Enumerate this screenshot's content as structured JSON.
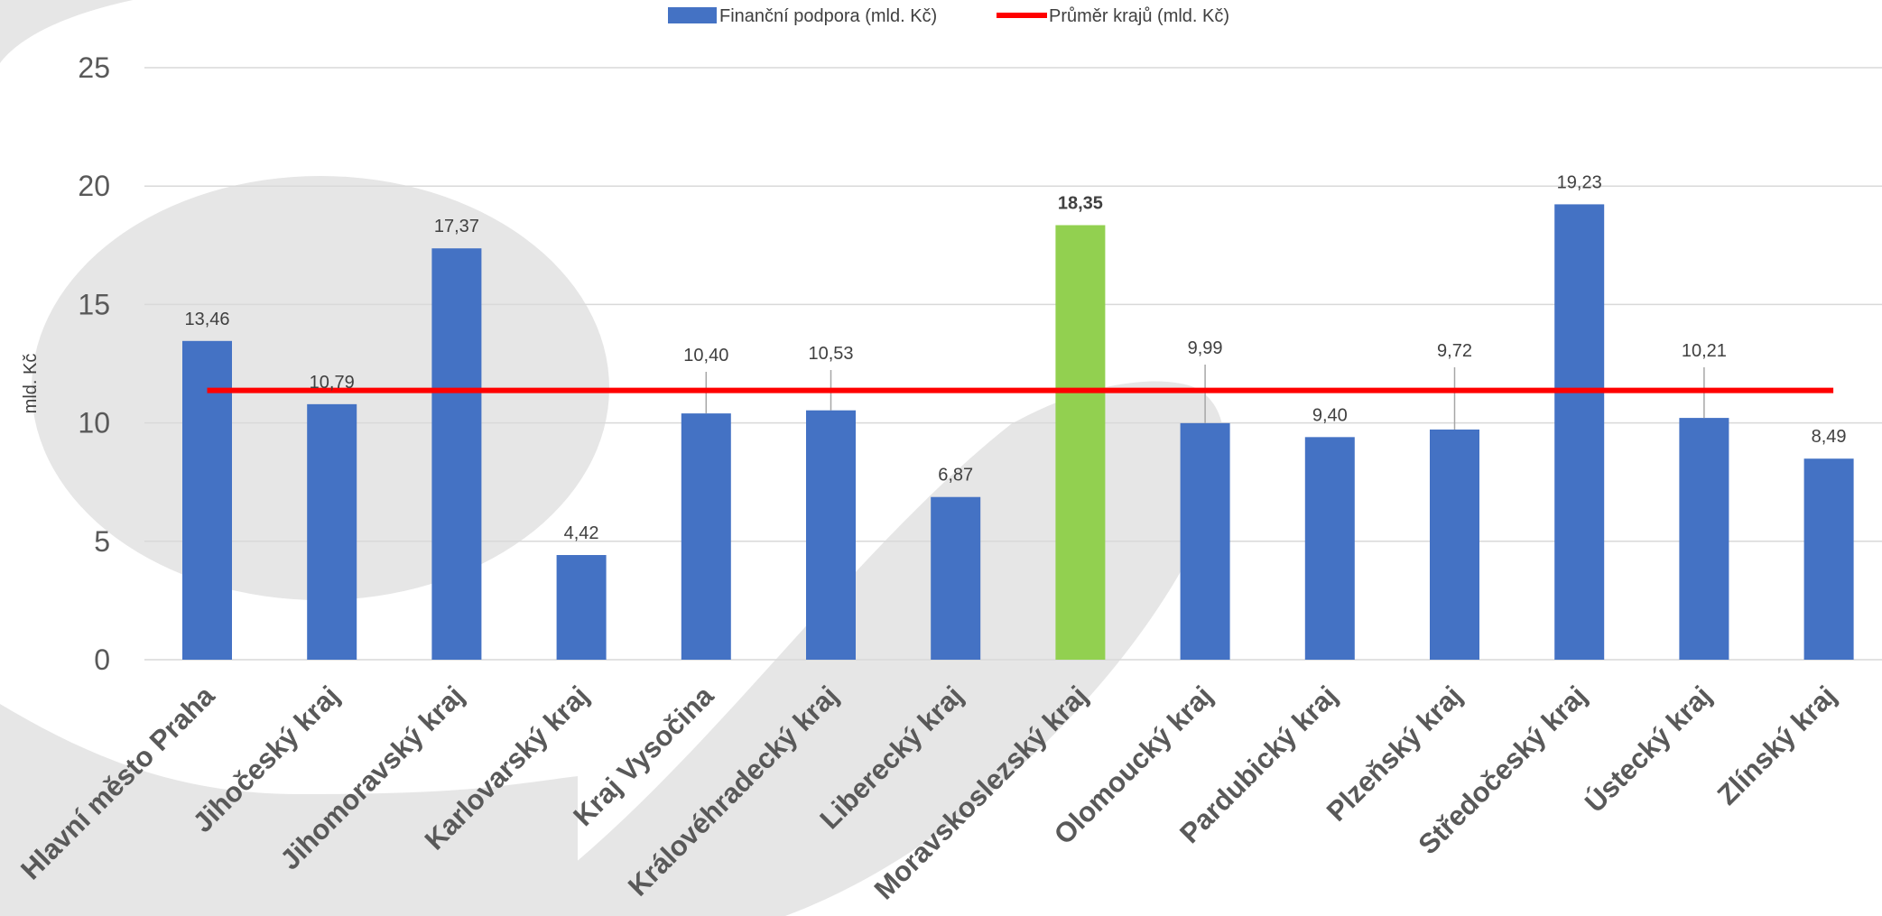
{
  "chart_data": {
    "type": "bar",
    "categories": [
      "Hlavní město Praha",
      "Jihočeský kraj",
      "Jihomoravský kraj",
      "Karlovarský kraj",
      "Kraj Vysočina",
      "Královéhradecký kraj",
      "Liberecký kraj",
      "Moravskoslezský kraj",
      "Olomoucký kraj",
      "Pardubický kraj",
      "Plzeňský kraj",
      "Středočeský kraj",
      "Ústecký kraj",
      "Zlínský kraj"
    ],
    "series": [
      {
        "name": "Finanční podpora (mld. Kč)",
        "type": "bar",
        "color": "#4472c4",
        "highlight_color": "#92d050",
        "highlight_index": 7,
        "values": [
          13.46,
          10.79,
          17.37,
          4.42,
          10.4,
          10.53,
          6.87,
          18.35,
          9.99,
          9.4,
          9.72,
          19.23,
          10.21,
          8.49
        ],
        "data_labels": [
          "13,46",
          "10,79",
          "17,37",
          "4,42",
          "10,40",
          "10,53",
          "6,87",
          "18,35",
          "9,99",
          "9,40",
          "9,72",
          "19,23",
          "10,21",
          "8,49"
        ]
      },
      {
        "name": "Průměr krajů (mld. Kč)",
        "type": "line",
        "color": "#ff0000",
        "value": 11.37
      }
    ],
    "ylabel": "mld. Kč",
    "yticks": [
      "0",
      "5",
      "10",
      "15",
      "20",
      "25"
    ],
    "ylim": [
      0,
      25
    ],
    "grid": true,
    "legend_position": "top-center"
  }
}
